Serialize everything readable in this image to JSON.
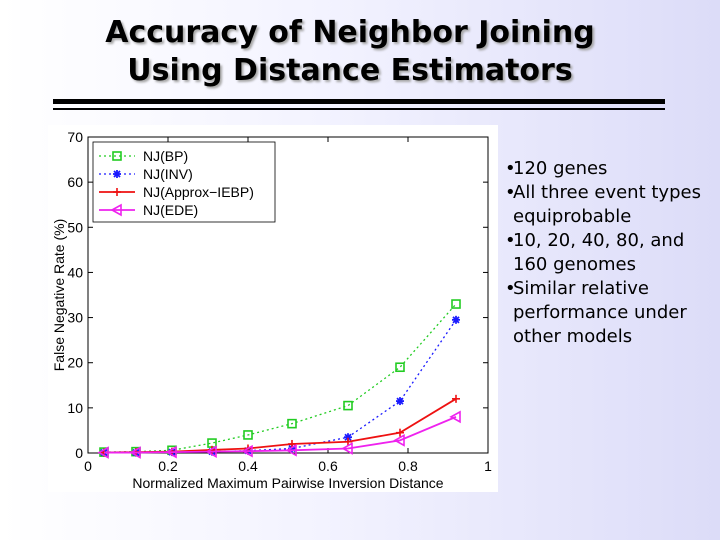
{
  "slide": {
    "title_line1": "Accuracy of Neighbor Joining",
    "title_line2": "Using Distance Estimators"
  },
  "bullets": [
    "120 genes",
    "All three event types equiprobable",
    "10, 20, 40, 80, and 160 genomes",
    "Similar relative performance under other models"
  ],
  "chart_data": {
    "type": "line",
    "title": "",
    "xlabel": "Normalized Maximum Pairwise Inversion Distance",
    "ylabel": "False Negative Rate (%)",
    "xlim": [
      0,
      1
    ],
    "ylim": [
      0,
      70
    ],
    "xticks": [
      0,
      0.2,
      0.4,
      0.6,
      0.8,
      1
    ],
    "xtick_labels": [
      "0",
      "0.2",
      "0.4",
      "0.6",
      "0.8",
      "1"
    ],
    "yticks": [
      0,
      10,
      20,
      30,
      40,
      50,
      60,
      70
    ],
    "ytick_labels": [
      "0",
      "10",
      "20",
      "30",
      "40",
      "50",
      "60",
      "70"
    ],
    "grid": false,
    "legend_position": "top-left",
    "series": [
      {
        "name": "NJ(BP)",
        "color": "#22cc22",
        "dash": "2,3",
        "marker": "square",
        "points": [
          [
            0.04,
            0.2
          ],
          [
            0.12,
            0.3
          ],
          [
            0.21,
            0.6
          ],
          [
            0.31,
            2.2
          ],
          [
            0.4,
            4.0
          ],
          [
            0.51,
            6.5
          ],
          [
            0.65,
            10.5
          ],
          [
            0.78,
            19.0
          ],
          [
            0.92,
            33.0
          ]
        ]
      },
      {
        "name": "NJ(INV)",
        "color": "#1a1aff",
        "dash": "2,3",
        "marker": "star",
        "points": [
          [
            0.04,
            0.1
          ],
          [
            0.12,
            0.1
          ],
          [
            0.21,
            0.2
          ],
          [
            0.31,
            0.3
          ],
          [
            0.4,
            0.5
          ],
          [
            0.51,
            1.0
          ],
          [
            0.65,
            3.5
          ],
          [
            0.78,
            11.5
          ],
          [
            0.92,
            29.5
          ]
        ]
      },
      {
        "name": "NJ(Approx−IEBP)",
        "color": "#ee1111",
        "dash": "",
        "marker": "plus",
        "points": [
          [
            0.04,
            0.1
          ],
          [
            0.12,
            0.2
          ],
          [
            0.21,
            0.3
          ],
          [
            0.31,
            0.7
          ],
          [
            0.4,
            1.0
          ],
          [
            0.51,
            2.0
          ],
          [
            0.65,
            2.5
          ],
          [
            0.78,
            4.5
          ],
          [
            0.92,
            12.0
          ]
        ]
      },
      {
        "name": "NJ(EDE)",
        "color": "#ee22ee",
        "dash": "",
        "marker": "triangle-left",
        "points": [
          [
            0.04,
            0.1
          ],
          [
            0.12,
            0.1
          ],
          [
            0.21,
            0.2
          ],
          [
            0.31,
            0.3
          ],
          [
            0.4,
            0.4
          ],
          [
            0.51,
            0.6
          ],
          [
            0.65,
            1.0
          ],
          [
            0.78,
            2.8
          ],
          [
            0.92,
            8.0
          ]
        ]
      }
    ]
  }
}
